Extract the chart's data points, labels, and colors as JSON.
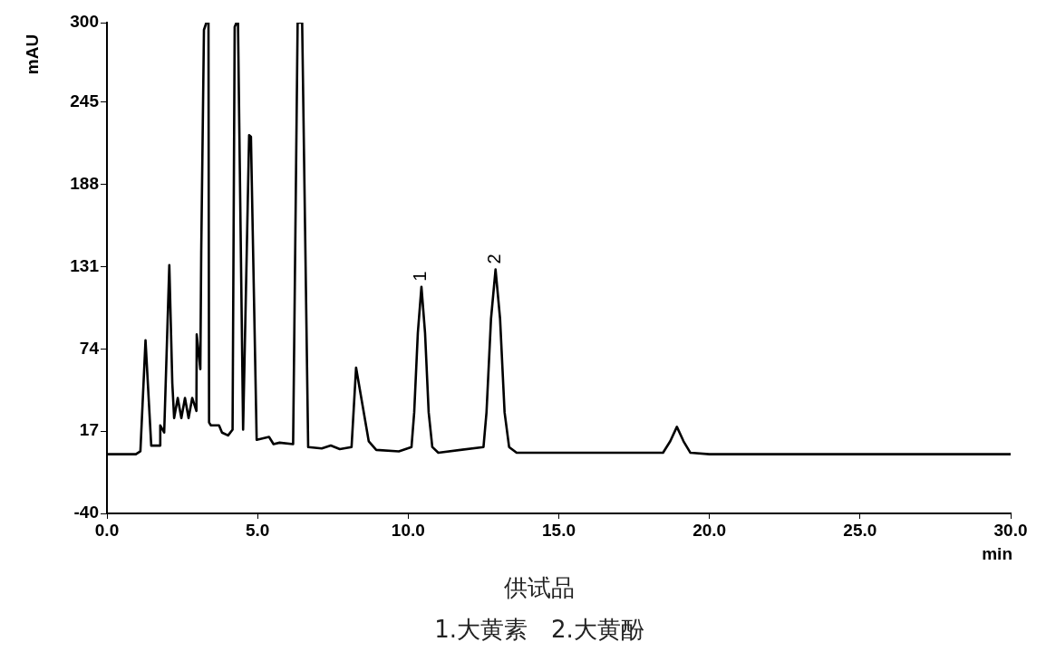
{
  "chart_data": {
    "type": "line",
    "xlabel": "min",
    "ylabel": "mAU",
    "x": [
      0,
      0.96,
      1.11,
      1.28,
      1.47,
      1.75,
      1.77,
      1.9,
      2.07,
      2.17,
      2.23,
      2.35,
      2.47,
      2.59,
      2.71,
      2.83,
      2.97,
      2.98,
      3.1,
      3.13,
      3.22,
      3.3,
      3.37,
      3.39,
      3.45,
      3.72,
      3.82,
      4.02,
      4.17,
      4.24,
      4.3,
      4.35,
      4.52,
      4.72,
      4.78,
      4.97,
      5.38,
      5.53,
      5.73,
      6.18,
      6.33,
      6.48,
      6.68,
      7.13,
      7.43,
      7.73,
      8.12,
      8.27,
      8.69,
      8.94,
      9.69,
      10.11,
      10.2,
      10.32,
      10.44,
      10.56,
      10.68,
      10.8,
      11,
      12.5,
      12.6,
      12.75,
      12.9,
      13.05,
      13.2,
      13.35,
      13.6,
      15,
      18.46,
      18.7,
      18.92,
      19.14,
      19.37,
      20,
      30
    ],
    "series": [
      {
        "color": "#000000",
        "values": [
          1,
          1,
          3,
          80,
          7,
          7,
          21,
          16,
          132,
          50,
          26,
          40,
          26,
          40,
          26,
          40,
          31,
          84,
          60,
          142,
          295,
          300,
          300,
          23,
          21,
          21,
          16,
          14,
          18,
          297,
          300,
          300,
          18,
          222,
          221,
          11,
          13,
          8,
          9,
          8,
          300,
          300,
          6,
          5,
          7,
          4.5,
          6,
          61,
          10,
          4,
          3,
          6,
          30,
          85,
          117,
          85,
          30,
          6,
          2,
          6,
          30,
          95,
          129,
          95,
          30,
          6,
          2,
          2,
          2,
          10,
          20,
          10,
          2,
          1,
          1
        ]
      }
    ],
    "xlim": [
      0,
      30
    ],
    "ylim": [
      -40,
      300
    ],
    "xticks": [
      {
        "value": 0,
        "label": "0.0"
      },
      {
        "value": 5,
        "label": "5.0"
      },
      {
        "value": 10,
        "label": "10.0"
      },
      {
        "value": 15,
        "label": "15.0"
      },
      {
        "value": 20,
        "label": "20.0"
      },
      {
        "value": 25,
        "label": "25.0"
      },
      {
        "value": 30,
        "label": "30.0"
      }
    ],
    "yticks": [
      -40,
      17,
      74,
      131,
      188,
      245,
      300
    ],
    "annotations": [
      "供试品",
      "1.大黄素　2.大黄酚",
      {
        "text": "1",
        "x": 10.44,
        "y": 117
      },
      {
        "text": "2",
        "x": 12.9,
        "y": 129
      }
    ]
  }
}
